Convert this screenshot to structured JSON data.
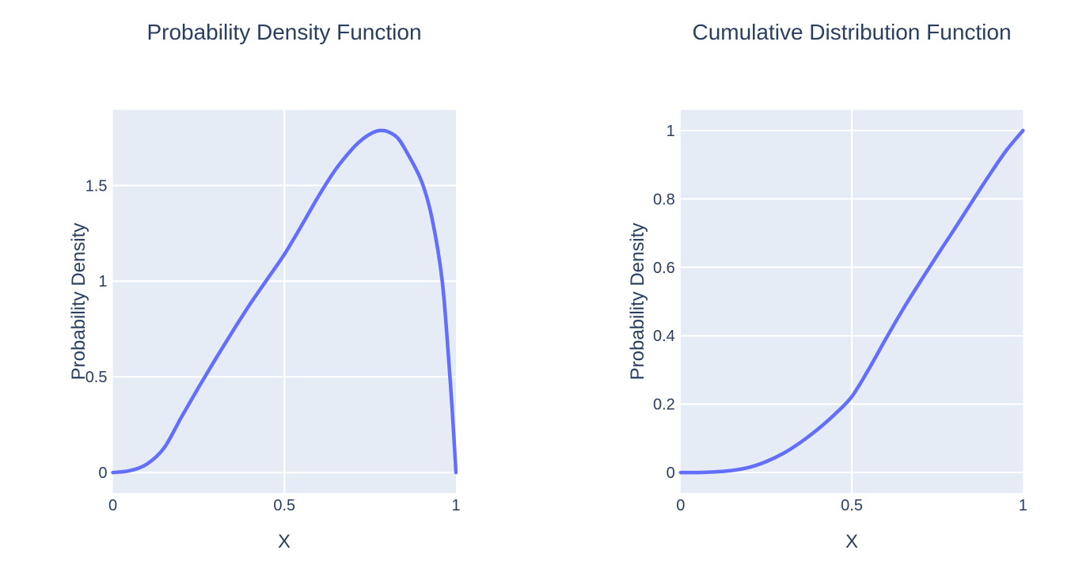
{
  "figure": {
    "background": "#ffffff",
    "colors": {
      "line": "#636efa",
      "plot_background": "#e5ecf6",
      "gridline": "#ffffff",
      "text": "#2a3f5f"
    }
  },
  "chart_data": [
    {
      "id": "pdf",
      "type": "line",
      "title": "Probability Density Function",
      "xlabel": "X",
      "ylabel": "Probability Density",
      "xlim": [
        0,
        1
      ],
      "ylim": [
        -0.107,
        1.894
      ],
      "grid": true,
      "legend": null,
      "xticks": {
        "values": [
          0,
          0.5,
          1
        ],
        "labels": [
          "0",
          "0.5",
          "1"
        ]
      },
      "yticks": {
        "values": [
          0,
          0.5,
          1,
          1.5
        ],
        "labels": [
          "0",
          "0.5",
          "1",
          "1.5"
        ]
      },
      "x": [
        0,
        0.05,
        0.1,
        0.15,
        0.2,
        0.25,
        0.3,
        0.35,
        0.4,
        0.45,
        0.5,
        0.55,
        0.6,
        0.65,
        0.7,
        0.73,
        0.76,
        0.78,
        0.8,
        0.83,
        0.86,
        0.9,
        0.93,
        0.96,
        0.98,
        0.99,
        1.0
      ],
      "y": [
        0,
        0.01,
        0.045,
        0.13,
        0.29,
        0.445,
        0.595,
        0.74,
        0.88,
        1.01,
        1.14,
        1.29,
        1.445,
        1.585,
        1.695,
        1.745,
        1.778,
        1.787,
        1.782,
        1.748,
        1.663,
        1.52,
        1.33,
        1.0,
        0.56,
        0.3,
        0.0
      ]
    },
    {
      "id": "cdf",
      "type": "line",
      "title": "Cumulative Distribution Function",
      "xlabel": "X",
      "ylabel": "Probability Density",
      "xlim": [
        0,
        1
      ],
      "ylim": [
        -0.06,
        1.06
      ],
      "grid": true,
      "legend": null,
      "xticks": {
        "values": [
          0,
          0.5,
          1
        ],
        "labels": [
          "0",
          "0.5",
          "1"
        ]
      },
      "yticks": {
        "values": [
          0,
          0.2,
          0.4,
          0.6,
          0.8,
          1
        ],
        "labels": [
          "0",
          "0.2",
          "0.4",
          "0.6",
          "0.8",
          "1"
        ]
      },
      "x": [
        0,
        0.05,
        0.1,
        0.15,
        0.2,
        0.25,
        0.3,
        0.35,
        0.4,
        0.45,
        0.5,
        0.55,
        0.6,
        0.65,
        0.7,
        0.75,
        0.8,
        0.85,
        0.9,
        0.95,
        1.0
      ],
      "y": [
        0,
        0.0,
        0.002,
        0.006,
        0.015,
        0.032,
        0.056,
        0.088,
        0.126,
        0.17,
        0.222,
        0.303,
        0.392,
        0.478,
        0.558,
        0.636,
        0.712,
        0.79,
        0.867,
        0.94,
        1.0
      ]
    }
  ]
}
